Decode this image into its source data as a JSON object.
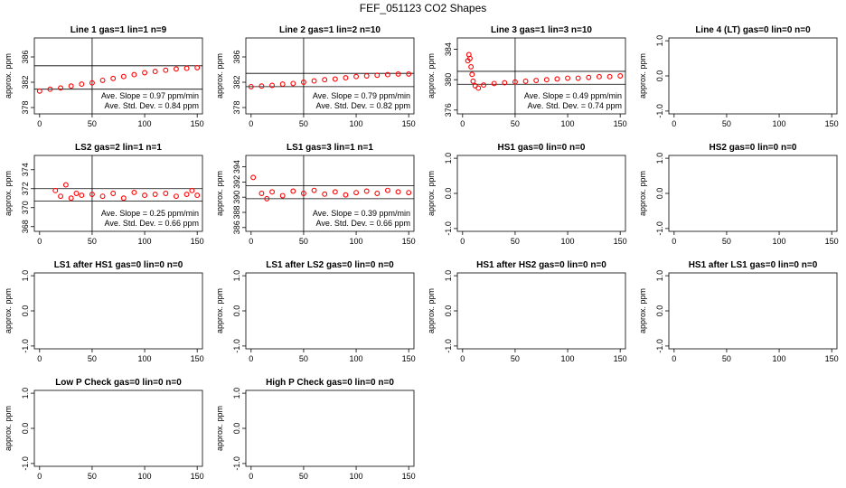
{
  "page_title": "FEF_051123  CO2 Shapes",
  "chart_data": [
    {
      "type": "scatter",
      "title": "Line 1 gas=1 lin=1 n=9",
      "ylabel": "approx. ppm",
      "xlim": [
        0,
        150
      ],
      "xticks": [
        "0",
        "50",
        "100",
        "150"
      ],
      "ylim": [
        377,
        389
      ],
      "yticks": [
        "378",
        "382",
        "386"
      ],
      "hlines": [
        380.9,
        384.6
      ],
      "vline": 50,
      "annotation": [
        "Ave. Slope =  0.97  ppm/min",
        "Ave. Std. Dev. =  0.84  ppm"
      ],
      "series": [
        {
          "color": "#ff0000",
          "x": [
            0,
            10,
            20,
            30,
            40,
            50,
            60,
            70,
            80,
            90,
            100,
            110,
            120,
            130,
            140,
            150
          ],
          "y": [
            380.6,
            380.9,
            381.1,
            381.4,
            381.7,
            381.9,
            382.3,
            382.6,
            382.9,
            383.2,
            383.5,
            383.7,
            383.9,
            384.1,
            384.2,
            384.3
          ]
        }
      ]
    },
    {
      "type": "scatter",
      "title": "Line 2 gas=1 lin=2 n=10",
      "ylabel": "approx. ppm",
      "xlim": [
        0,
        150
      ],
      "xticks": [
        "0",
        "50",
        "100",
        "150"
      ],
      "ylim": [
        377,
        389
      ],
      "yticks": [
        "378",
        "382",
        "386"
      ],
      "hlines": [
        381.3,
        383.4
      ],
      "vline": 50,
      "annotation": [
        "Ave. Slope =  0.79  ppm/min",
        "Ave. Std. Dev. =  0.82  ppm"
      ],
      "series": [
        {
          "color": "#ff0000",
          "x": [
            0,
            10,
            20,
            30,
            40,
            50,
            60,
            70,
            80,
            90,
            100,
            110,
            120,
            130,
            140,
            150
          ],
          "y": [
            381.3,
            381.4,
            381.5,
            381.7,
            381.8,
            382.0,
            382.2,
            382.4,
            382.5,
            382.7,
            382.9,
            383.0,
            383.1,
            383.2,
            383.3,
            383.3
          ]
        }
      ]
    },
    {
      "type": "scatter",
      "title": "Line 3 gas=1 lin=3 n=10",
      "ylabel": "approx. ppm",
      "xlim": [
        0,
        150
      ],
      "xticks": [
        "0",
        "50",
        "100",
        "150"
      ],
      "ylim": [
        375.5,
        385.5
      ],
      "yticks": [
        "376",
        "380",
        "384"
      ],
      "hlines": [
        379.4,
        381.1
      ],
      "vline": 50,
      "annotation": [
        "Ave. Slope =  0.49  ppm/min",
        "Ave. Std. Dev. =  0.74  ppm"
      ],
      "series": [
        {
          "color": "#ff0000",
          "x": [
            5,
            6,
            7,
            8,
            9,
            10,
            12,
            15,
            20,
            30,
            40,
            50,
            60,
            70,
            80,
            90,
            100,
            110,
            120,
            130,
            140,
            150
          ],
          "y": [
            382.5,
            383.3,
            382.8,
            381.7,
            380.7,
            379.8,
            379.2,
            378.9,
            379.3,
            379.5,
            379.6,
            379.7,
            379.8,
            379.9,
            380.0,
            380.1,
            380.2,
            380.2,
            380.3,
            380.4,
            380.4,
            380.5
          ]
        }
      ]
    },
    {
      "type": "scatter",
      "title": "Line 4 (LT) gas=0 lin=0 n=0",
      "ylabel": "approx. ppm",
      "xlim": [
        0,
        150
      ],
      "xticks": [
        "0",
        "50",
        "100",
        "150"
      ],
      "ylim": [
        -1.08,
        1.08
      ],
      "yticks": [
        "-1.0",
        "0.0",
        "1.0"
      ]
    },
    {
      "type": "scatter",
      "title": "LS2 gas=2 lin=1 n=1",
      "ylabel": "approx. ppm",
      "xlim": [
        0,
        150
      ],
      "xticks": [
        "0",
        "50",
        "100",
        "150"
      ],
      "ylim": [
        367.5,
        375.5
      ],
      "yticks": [
        "368",
        "370",
        "372",
        "374"
      ],
      "hlines": [
        370.7,
        372.0
      ],
      "vline": 50,
      "annotation": [
        "Ave. Slope =  0.25  ppm/min",
        "Ave. Std. Dev. =  0.66  ppm"
      ],
      "series": [
        {
          "color": "#ff0000",
          "x": [
            15,
            20,
            25,
            30,
            35,
            40,
            50,
            60,
            70,
            80,
            90,
            100,
            110,
            120,
            130,
            140,
            145,
            150
          ],
          "y": [
            371.8,
            371.2,
            372.4,
            371.0,
            371.5,
            371.3,
            371.4,
            371.2,
            371.5,
            371.0,
            371.6,
            371.3,
            371.4,
            371.5,
            371.2,
            371.4,
            371.8,
            371.3
          ]
        }
      ]
    },
    {
      "type": "scatter",
      "title": "LS1 gas=3 lin=1 n=1",
      "ylabel": "approx. ppm",
      "xlim": [
        0,
        150
      ],
      "xticks": [
        "0",
        "50",
        "100",
        "150"
      ],
      "ylim": [
        385.5,
        395.5
      ],
      "yticks": [
        "386",
        "388",
        "390",
        "392",
        "394"
      ],
      "hlines": [
        389.8,
        391.5
      ],
      "vline": 50,
      "annotation": [
        "Ave. Slope =  0.39  ppm/min",
        "Ave. Std. Dev. =  0.66  ppm"
      ],
      "series": [
        {
          "color": "#ff0000",
          "x": [
            2,
            10,
            15,
            20,
            30,
            40,
            50,
            60,
            70,
            80,
            90,
            100,
            110,
            120,
            130,
            140,
            150
          ],
          "y": [
            392.6,
            390.5,
            389.8,
            390.7,
            390.2,
            390.8,
            390.5,
            390.9,
            390.4,
            390.7,
            390.3,
            390.6,
            390.8,
            390.5,
            390.9,
            390.7,
            390.6
          ]
        }
      ]
    },
    {
      "type": "scatter",
      "title": "HS1 gas=0 lin=0 n=0",
      "ylabel": "approx. ppm",
      "xlim": [
        0,
        150
      ],
      "xticks": [
        "0",
        "50",
        "100",
        "150"
      ],
      "ylim": [
        -1.08,
        1.08
      ],
      "yticks": [
        "-1.0",
        "0.0",
        "1.0"
      ]
    },
    {
      "type": "scatter",
      "title": "HS2 gas=0 lin=0 n=0",
      "ylabel": "approx. ppm",
      "xlim": [
        0,
        150
      ],
      "xticks": [
        "0",
        "50",
        "100",
        "150"
      ],
      "ylim": [
        -1.08,
        1.08
      ],
      "yticks": [
        "-1.0",
        "0.0",
        "1.0"
      ]
    },
    {
      "type": "scatter",
      "title": "LS1 after HS1 gas=0 lin=0 n=0",
      "ylabel": "approx. ppm",
      "xlim": [
        0,
        150
      ],
      "xticks": [
        "0",
        "50",
        "100",
        "150"
      ],
      "ylim": [
        -1.08,
        1.08
      ],
      "yticks": [
        "-1.0",
        "0.0",
        "1.0"
      ]
    },
    {
      "type": "scatter",
      "title": "LS1 after LS2 gas=0 lin=0 n=0",
      "ylabel": "approx. ppm",
      "xlim": [
        0,
        150
      ],
      "xticks": [
        "0",
        "50",
        "100",
        "150"
      ],
      "ylim": [
        -1.08,
        1.08
      ],
      "yticks": [
        "-1.0",
        "0.0",
        "1.0"
      ]
    },
    {
      "type": "scatter",
      "title": "HS1 after HS2 gas=0 lin=0 n=0",
      "ylabel": "approx. ppm",
      "xlim": [
        0,
        150
      ],
      "xticks": [
        "0",
        "50",
        "100",
        "150"
      ],
      "ylim": [
        -1.08,
        1.08
      ],
      "yticks": [
        "-1.0",
        "0.0",
        "1.0"
      ]
    },
    {
      "type": "scatter",
      "title": "HS1 after LS1 gas=0 lin=0 n=0",
      "ylabel": "approx. ppm",
      "xlim": [
        0,
        150
      ],
      "xticks": [
        "0",
        "50",
        "100",
        "150"
      ],
      "ylim": [
        -1.08,
        1.08
      ],
      "yticks": [
        "-1.0",
        "0.0",
        "1.0"
      ]
    },
    {
      "type": "scatter",
      "title": "Low P Check gas=0 lin=0 n=0",
      "ylabel": "approx. ppm",
      "xlim": [
        0,
        150
      ],
      "xticks": [
        "0",
        "50",
        "100",
        "150"
      ],
      "ylim": [
        -1.08,
        1.08
      ],
      "yticks": [
        "-1.0",
        "0.0",
        "1.0"
      ]
    },
    {
      "type": "scatter",
      "title": "High P Check gas=0 lin=0 n=0",
      "ylabel": "approx. ppm",
      "xlim": [
        0,
        150
      ],
      "xticks": [
        "0",
        "50",
        "100",
        "150"
      ],
      "ylim": [
        -1.08,
        1.08
      ],
      "yticks": [
        "-1.0",
        "0.0",
        "1.0"
      ]
    }
  ]
}
